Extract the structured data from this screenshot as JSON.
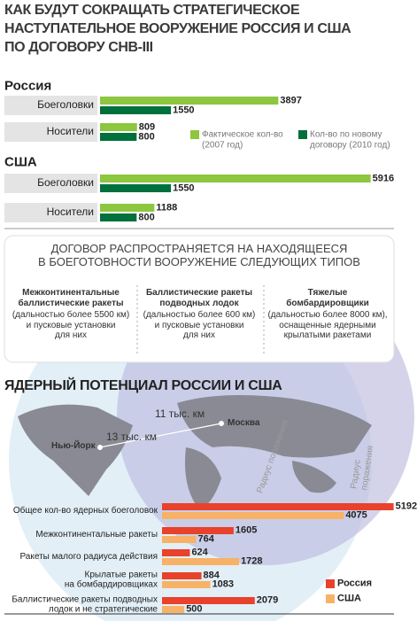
{
  "header": {
    "title": "КАК БУДУТ СОКРАЩАТЬ СТРАТЕГИЧЕСКОЕ\nНАСТУПАТЕЛЬНОЕ ВООРУЖЕНИЕ РОССИЯ И США\nПО ДОГОВОРУ СНВ-III"
  },
  "treaty": {
    "heading": "ДОГОВОР РАСПРОСТРАНЯЕТСЯ НА НАХОДЯЩЕЕСЯ\nВ БОЕГОТОВНОСТИ ВООРУЖЕНИЕ СЛЕДУЮЩИХ ТИПОВ",
    "types": [
      {
        "title": "Межконтинентальные\nбаллистические ракеты",
        "description": "(дальностью более 5500 км)\nи пусковые установки\nдля них"
      },
      {
        "title": "Баллистические ракеты\nподводных лодок",
        "description": "(дальностью более 600 км)\nи пусковые установки\nдля них"
      },
      {
        "title": "Тяжелые\nбомбардировщики",
        "description": "(дальностью более 8000 км),\nоснащенные ядерными\nкрылатыми ракетами"
      }
    ]
  },
  "map": {
    "distance_moscow": "11 тыс. км",
    "distance_newyork": "13 тыс. км",
    "city_moscow": "Москва",
    "city_newyork": "Нью-Йорк",
    "radius_label_1": "Радиус поражения",
    "radius_label_2": "Радиус поражения"
  },
  "chart_data": [
    {
      "type": "bar",
      "orientation": "horizontal",
      "groups": [
        "Россия",
        "США"
      ],
      "categories": [
        "Боеголовки",
        "Носители",
        "Боеголовки",
        "Носители"
      ],
      "series": [
        {
          "name": "Фактическое кол-во\n(2007 год)",
          "color": "#8dc63f",
          "values": [
            3897,
            809,
            5916,
            1188
          ]
        },
        {
          "name": "Кол-во по новому\nдоговору (2010 год)",
          "color": "#00703c",
          "values": [
            1550,
            800,
            1550,
            800
          ]
        }
      ],
      "xlim": [
        0,
        6000
      ],
      "legend": "right"
    },
    {
      "type": "bar",
      "orientation": "horizontal",
      "title": "ЯДЕРНЫЙ ПОТЕНЦИАЛ РОССИИ И США",
      "categories": [
        "Общее кол-во ядерных боеголовок",
        "Межконтинентальные ракеты",
        "Ракеты малого радиуса действия",
        "Крылатые ракеты\nна бомбардировщиках",
        "Баллистические ракеты подводных\nлодок и не стратегические"
      ],
      "series": [
        {
          "name": "Россия",
          "color": "#e8412c",
          "values": [
            5192,
            1605,
            624,
            884,
            2079
          ]
        },
        {
          "name": "США",
          "color": "#f7b267",
          "values": [
            4075,
            764,
            1728,
            1083,
            500
          ]
        }
      ],
      "xlim": [
        0,
        5200
      ],
      "legend": "bottom-right"
    }
  ]
}
